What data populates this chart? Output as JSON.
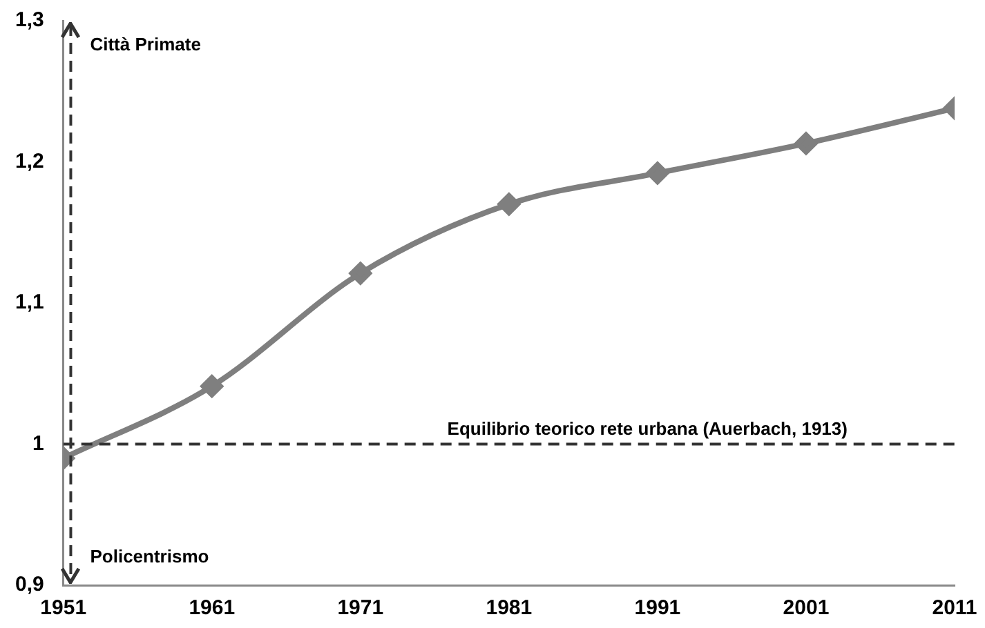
{
  "chart_data": {
    "type": "line",
    "x": [
      1951,
      1961,
      1971,
      1981,
      1991,
      2001,
      2011
    ],
    "series": [
      {
        "color": "#7f7f7f",
        "values": [
          0.99,
          1.041,
          1.121,
          1.17,
          1.192,
          1.213,
          1.238
        ]
      }
    ],
    "xlim": [
      1951,
      2011
    ],
    "xticks": [
      1951,
      1961,
      1971,
      1981,
      1991,
      2001,
      2011
    ],
    "ylim": [
      0.9,
      1.3
    ],
    "yticks": [
      {
        "value": 0.9,
        "label": "0,9"
      },
      {
        "value": 1,
        "label": "1"
      },
      {
        "value": 1.1,
        "label": "1,1"
      },
      {
        "value": 1.2,
        "label": "1,2"
      },
      {
        "value": 1.3,
        "label": "1,3"
      }
    ],
    "ref_lines": [
      {
        "axis": "x",
        "value": 1951.5,
        "color": "#333333",
        "line_style": "dashed"
      },
      {
        "axis": "y",
        "value": 1,
        "label": "Equilibrio teorico rete urbana (Auerbach, 1913)",
        "color": "#333333",
        "line_style": "dashed"
      }
    ],
    "annotations": [
      "Città Primate",
      "Policentrismo"
    ],
    "grid": false,
    "legend": false,
    "marker": "diamond",
    "line_style": "solid"
  }
}
